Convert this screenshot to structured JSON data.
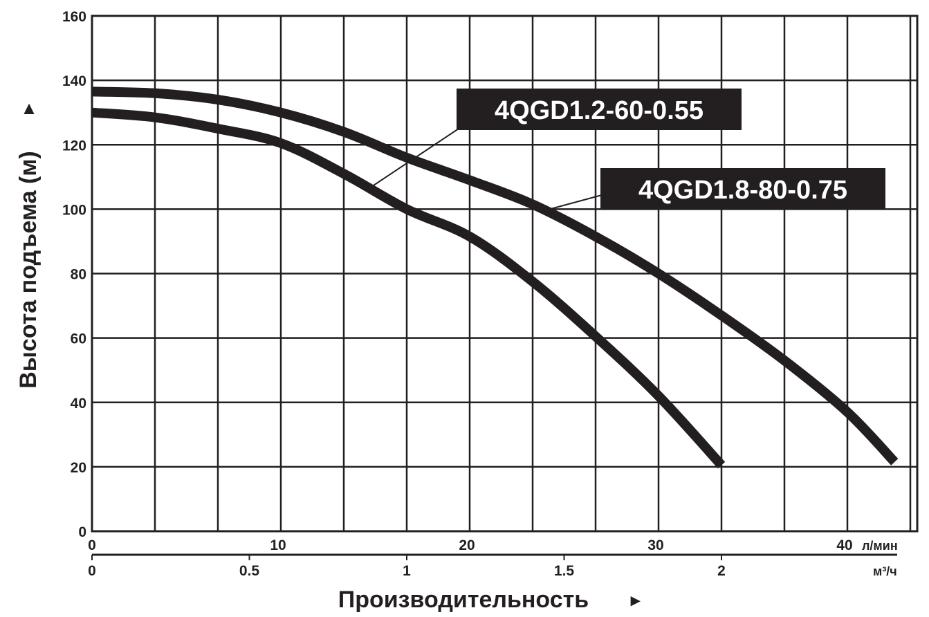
{
  "chart_data": {
    "type": "line",
    "title": "",
    "ylabel": "Высота подъема (м)",
    "ylabel_arrow": "▲",
    "xlabel": "Производительность",
    "xlabel_arrow": "▸",
    "ylim": [
      0,
      160
    ],
    "yticks": [
      0,
      20,
      40,
      60,
      80,
      100,
      120,
      140,
      160
    ],
    "xlim_m3h": [
      0,
      2.62
    ],
    "grid": true,
    "grid_x_step_m3h": 0.2,
    "x_axes": [
      {
        "unit": "л/мин",
        "ticks": [
          0,
          10,
          20,
          30,
          40
        ],
        "factor_to_m3h": 0.06
      },
      {
        "unit": "м³/ч",
        "ticks": [
          0,
          0.5,
          1,
          1.5,
          2
        ],
        "factor_to_m3h": 1
      }
    ],
    "line_color": "#231f20",
    "series": [
      {
        "name": "4QGD1.2-60-0.55",
        "x": [
          0,
          0.2,
          0.4,
          0.6,
          0.8,
          1.0,
          1.2,
          1.4,
          1.6,
          1.8,
          2.0
        ],
        "y": [
          130,
          128.5,
          125,
          120.5,
          111,
          100,
          91.5,
          77.5,
          60.5,
          42,
          20.5
        ]
      },
      {
        "name": "4QGD1.8-80-0.75",
        "x": [
          0,
          0.2,
          0.4,
          0.6,
          0.8,
          1.0,
          1.2,
          1.4,
          1.6,
          1.8,
          2.0,
          2.2,
          2.4,
          2.55
        ],
        "y": [
          136.5,
          136,
          134,
          130,
          124,
          116,
          109,
          101.5,
          91.5,
          80,
          67,
          53,
          37,
          21.5
        ]
      }
    ]
  }
}
